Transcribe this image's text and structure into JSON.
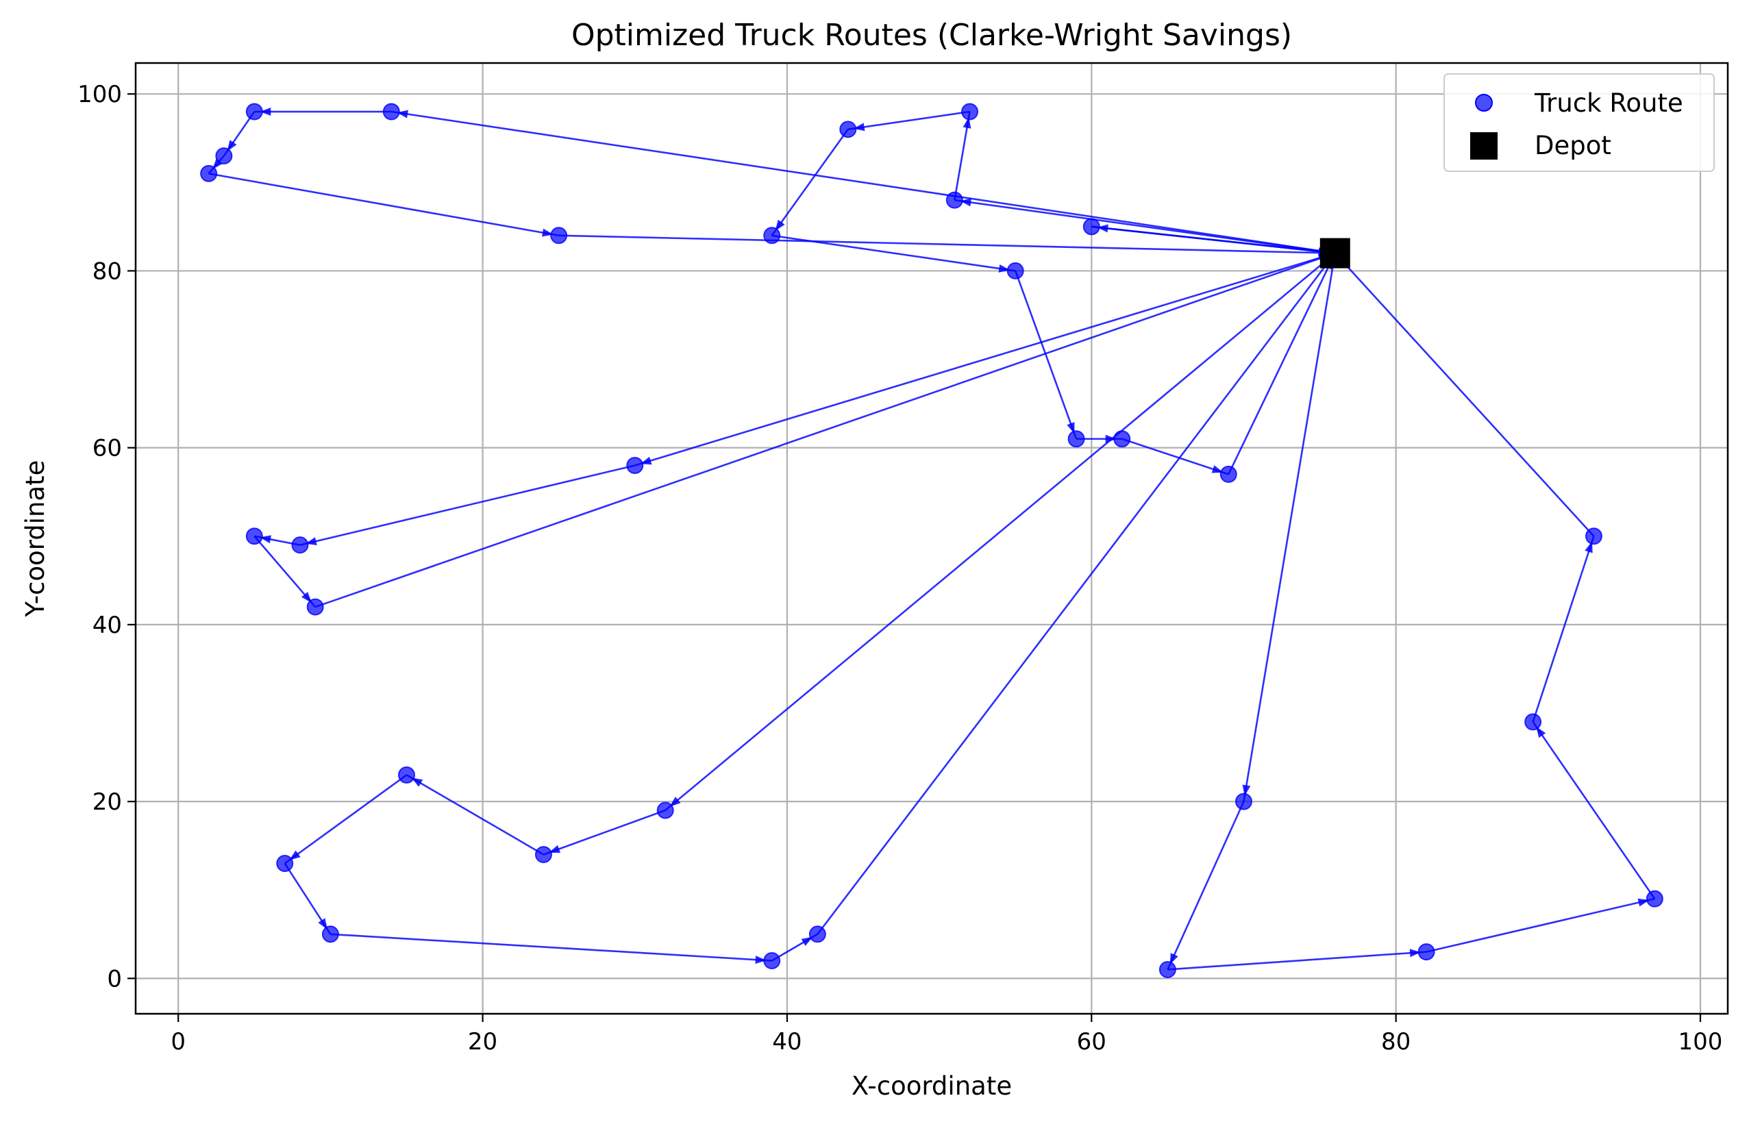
{
  "chart_data": {
    "type": "line",
    "title": "Optimized Truck Routes (Clarke-Wright Savings)",
    "xlabel": "X-coordinate",
    "ylabel": "Y-coordinate",
    "xlim": [
      -2.8,
      101.8
    ],
    "ylim": [
      -4,
      103.5
    ],
    "xticks": [
      0,
      20,
      40,
      60,
      80,
      100
    ],
    "yticks": [
      0,
      20,
      40,
      60,
      80,
      100
    ],
    "grid": true,
    "legend_position": "top-right",
    "legend": [
      {
        "label": "Truck Route",
        "marker": "circle",
        "color": "#0000ff"
      },
      {
        "label": "Depot",
        "marker": "square",
        "color": "#000000"
      }
    ],
    "depot": {
      "x": 76,
      "y": 82
    },
    "colors": {
      "route": "#0000ff",
      "depot": "#000000",
      "grid": "#b0b0b0"
    },
    "routes": [
      [
        [
          76,
          82
        ],
        [
          14,
          98
        ],
        [
          5,
          98
        ],
        [
          3,
          93
        ],
        [
          2,
          91
        ],
        [
          25,
          84
        ],
        [
          76,
          82
        ]
      ],
      [
        [
          76,
          82
        ],
        [
          51,
          88
        ],
        [
          52,
          98
        ],
        [
          44,
          96
        ],
        [
          39,
          84
        ],
        [
          55,
          80
        ],
        [
          59,
          61
        ],
        [
          62,
          61
        ],
        [
          69,
          57
        ],
        [
          76,
          82
        ]
      ],
      [
        [
          76,
          82
        ],
        [
          60,
          85
        ],
        [
          76,
          82
        ]
      ],
      [
        [
          76,
          82
        ],
        [
          30,
          58
        ],
        [
          8,
          49
        ],
        [
          5,
          50
        ],
        [
          9,
          42
        ],
        [
          76,
          82
        ]
      ],
      [
        [
          76,
          82
        ],
        [
          32,
          19
        ],
        [
          24,
          14
        ],
        [
          15,
          23
        ],
        [
          7,
          13
        ],
        [
          10,
          5
        ],
        [
          39,
          2
        ],
        [
          42,
          5
        ],
        [
          76,
          82
        ]
      ],
      [
        [
          76,
          82
        ],
        [
          70,
          20
        ],
        [
          65,
          1
        ],
        [
          82,
          3
        ],
        [
          97,
          9
        ],
        [
          89,
          29
        ],
        [
          93,
          50
        ],
        [
          76,
          82
        ]
      ]
    ]
  }
}
